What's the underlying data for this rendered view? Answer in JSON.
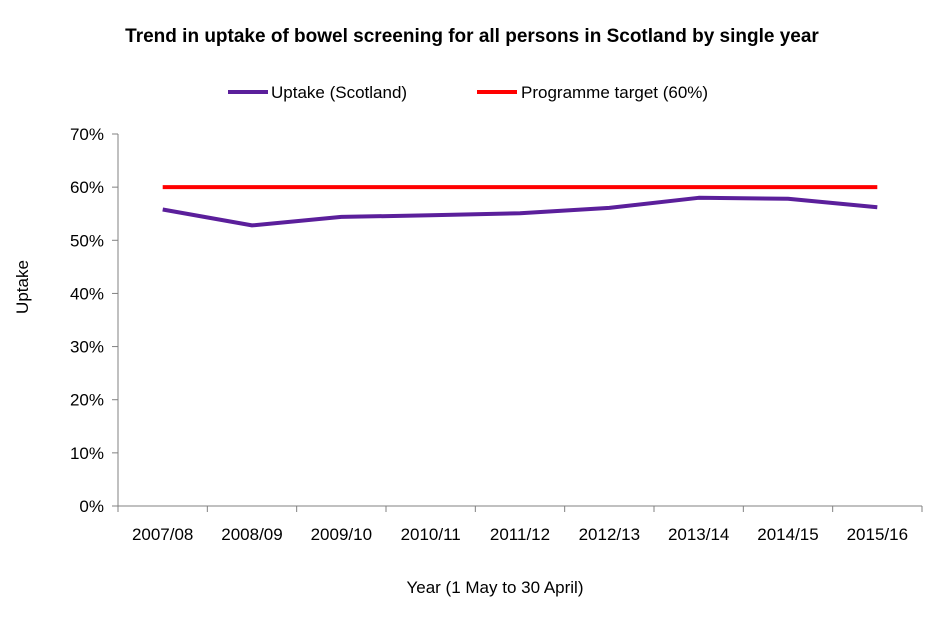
{
  "chart_data": {
    "type": "line",
    "title": "Trend in uptake of bowel screening for all persons in Scotland by single year",
    "xlabel": "Year (1 May to 30 April)",
    "ylabel": "Uptake",
    "categories": [
      "2007/08",
      "2008/09",
      "2009/10",
      "2010/11",
      "2011/12",
      "2012/13",
      "2013/14",
      "2014/15",
      "2015/16"
    ],
    "y_ticks": [
      "0%",
      "10%",
      "20%",
      "30%",
      "40%",
      "50%",
      "60%",
      "70%"
    ],
    "ylim": [
      0,
      70
    ],
    "grid": false,
    "legend_position": "top",
    "series": [
      {
        "name": "Uptake (Scotland)",
        "color": "#5b1f9b",
        "values": [
          55.8,
          52.8,
          54.4,
          54.7,
          55.1,
          56.1,
          58.0,
          57.8,
          56.2
        ]
      },
      {
        "name": "Programme target (60%)",
        "color": "#ff0000",
        "values": [
          60,
          60,
          60,
          60,
          60,
          60,
          60,
          60,
          60
        ]
      }
    ]
  }
}
